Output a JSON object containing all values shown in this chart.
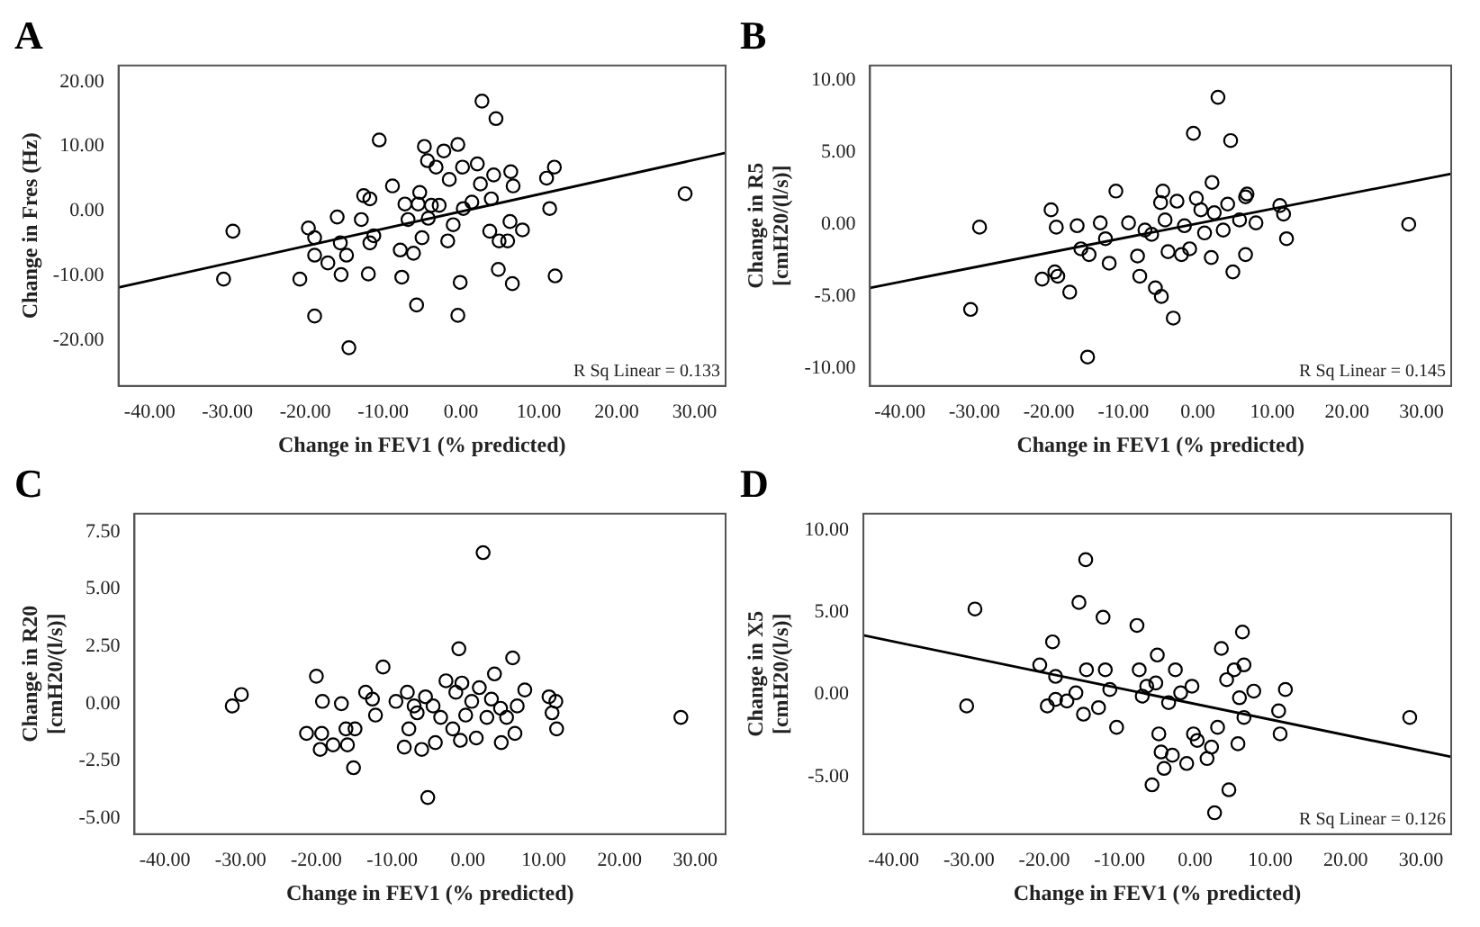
{
  "chart_data": [
    {
      "type": "scatter",
      "title": "A",
      "xlabel": "Change in FEV1 (% predicted)",
      "ylabel": "Change in Fres (Hz)",
      "xlim": [
        -44,
        34
      ],
      "ylim": [
        -27,
        22.5
      ],
      "xticks": [
        {
          "value": -40,
          "label": "-40.00"
        },
        {
          "value": -30,
          "label": "-30.00"
        },
        {
          "value": -20,
          "label": "-20.00"
        },
        {
          "value": -10,
          "label": "-10.00"
        },
        {
          "value": 0,
          "label": "0.00"
        },
        {
          "value": 10,
          "label": "10.00"
        },
        {
          "value": 20,
          "label": "20.00"
        },
        {
          "value": 30,
          "label": "30.00"
        }
      ],
      "yticks": [
        {
          "value": -20,
          "label": "-20.00"
        },
        {
          "value": -10,
          "label": "-10.00"
        },
        {
          "value": 0,
          "label": "0.00"
        },
        {
          "value": 10,
          "label": "10.00"
        },
        {
          "value": 20,
          "label": "20.00"
        }
      ],
      "grid": false,
      "legend": false,
      "annotations": [
        "R Sq Linear = 0.133"
      ],
      "series": [
        {
          "type": "scatter",
          "marker": "circle",
          "color": "#000000",
          "x": [
            -30.5,
            -29.3,
            -20.7,
            -19.6,
            -18.8,
            -18.8,
            -18.8,
            -17.1,
            -15.9,
            -15.5,
            -15.4,
            -14.7,
            -14.4,
            -12.8,
            -12.5,
            -11.9,
            -11.7,
            -11.7,
            -11.2,
            -10.5,
            -8.8,
            -7.6,
            -7.8,
            -7.2,
            -6.8,
            -6.1,
            -5.7,
            -5.5,
            -5.3,
            -5.0,
            -4.7,
            -4.3,
            -4.2,
            -3.8,
            -3.2,
            -2.8,
            -2.2,
            -1.7,
            -1.5,
            -1.0,
            -0.4,
            -0.4,
            -0.1,
            0.2,
            0.3,
            1.4,
            2.1,
            2.5,
            2.7,
            3.7,
            3.9,
            4.2,
            4.5,
            4.8,
            4.9,
            6.0,
            6.3,
            6.4,
            6.6,
            6.7,
            7.9,
            11.0,
            11.4,
            12.0,
            12.1,
            28.8
          ],
          "values": [
            -10.5,
            -3.1,
            -10.5,
            -2.6,
            -4.1,
            -6.8,
            -16.2,
            -8.0,
            -0.9,
            -4.9,
            -9.8,
            -6.8,
            -21.1,
            -1.3,
            2.4,
            -9.7,
            1.9,
            -4.9,
            -3.8,
            11.0,
            3.9,
            -10.2,
            -6.0,
            1.1,
            -1.3,
            -6.5,
            -14.5,
            1.1,
            2.9,
            -4.1,
            10.0,
            7.8,
            -1.1,
            0.9,
            6.8,
            0.9,
            9.3,
            -4.6,
            4.9,
            -2.1,
            10.3,
            -16.1,
            -11.0,
            6.8,
            0.4,
            1.4,
            7.3,
            4.2,
            17.0,
            -3.1,
            1.9,
            5.6,
            14.3,
            -9.0,
            -4.6,
            -4.6,
            -1.6,
            6.1,
            -11.2,
            3.9,
            -2.9,
            5.1,
            0.4,
            6.8,
            -10.0,
            2.7
          ]
        },
        {
          "type": "line",
          "marker": "none",
          "color": "#000000",
          "x": [
            -44,
            34
          ],
          "values": [
            -11.8,
            9.0
          ]
        }
      ]
    },
    {
      "type": "scatter",
      "title": "B",
      "xlabel": "Change in FEV1 (% predicted)",
      "ylabel": "Change in R5 [cmH20/(l/s)]",
      "xlim": [
        -44,
        34
      ],
      "ylim": [
        -11.2,
        11
      ],
      "xticks": [
        {
          "value": -40,
          "label": "-40.00"
        },
        {
          "value": -30,
          "label": "-30.00"
        },
        {
          "value": -20,
          "label": "-20.00"
        },
        {
          "value": -10,
          "label": "-10.00"
        },
        {
          "value": 0,
          "label": "0.00"
        },
        {
          "value": 10,
          "label": "10.00"
        },
        {
          "value": 20,
          "label": "20.00"
        },
        {
          "value": 30,
          "label": "30.00"
        }
      ],
      "yticks": [
        {
          "value": -10,
          "label": "-10.00"
        },
        {
          "value": -5,
          "label": "-5.00"
        },
        {
          "value": 0,
          "label": "0.00"
        },
        {
          "value": 5,
          "label": "5.00"
        },
        {
          "value": 10,
          "label": "10.00"
        }
      ],
      "grid": false,
      "legend": false,
      "annotations": [
        "R Sq Linear = 0.145"
      ],
      "series": [
        {
          "type": "scatter",
          "marker": "circle",
          "color": "#000000",
          "x": [
            -30.5,
            -29.3,
            -20.9,
            -19.7,
            -19.0,
            -19.2,
            -18.8,
            -17.2,
            -16.2,
            -15.7,
            -14.8,
            -14.6,
            -13.1,
            -12.4,
            -11.9,
            -11.0,
            -9.3,
            -8.1,
            -7.8,
            -7.1,
            -6.2,
            -5.7,
            -5.0,
            -4.9,
            -4.7,
            -4.4,
            -4.0,
            -3.3,
            -2.8,
            -2.2,
            -1.8,
            -1.1,
            -0.6,
            -0.2,
            0.4,
            0.9,
            1.8,
            1.9,
            2.2,
            2.7,
            3.4,
            4.0,
            4.4,
            4.7,
            5.6,
            6.4,
            6.4,
            6.6,
            7.8,
            11.0,
            11.5,
            11.9,
            28.3
          ],
          "values": [
            -5.9,
            -0.2,
            -3.8,
            1.0,
            -0.2,
            -3.3,
            -3.6,
            -4.7,
            -0.1,
            -1.7,
            -9.2,
            -2.1,
            0.1,
            -1.0,
            -2.7,
            2.3,
            0.1,
            -2.2,
            -3.6,
            -0.4,
            -0.7,
            -4.4,
            1.5,
            -5.0,
            2.3,
            0.3,
            -1.9,
            -6.5,
            1.6,
            -2.1,
            -0.1,
            -1.7,
            6.3,
            1.8,
            1.0,
            -0.6,
            -2.3,
            2.9,
            0.8,
            8.8,
            -0.4,
            1.4,
            5.8,
            -3.3,
            0.3,
            1.9,
            -2.1,
            2.1,
            0.1,
            1.3,
            0.7,
            -1.0,
            0.0
          ]
        },
        {
          "type": "line",
          "marker": "none",
          "color": "#000000",
          "x": [
            -44,
            34
          ],
          "values": [
            -4.4,
            3.5
          ]
        }
      ]
    },
    {
      "type": "scatter",
      "title": "C",
      "xlabel": "Change in FEV1 (% predicted)",
      "ylabel": "Change in R20 [cmH20/(l/s)]",
      "xlim": [
        -44,
        34
      ],
      "ylim": [
        -5.7,
        8.3
      ],
      "xticks": [
        {
          "value": -40,
          "label": "-40.00"
        },
        {
          "value": -30,
          "label": "-30.00"
        },
        {
          "value": -20,
          "label": "-20.00"
        },
        {
          "value": -10,
          "label": "-10.00"
        },
        {
          "value": 0,
          "label": "0.00"
        },
        {
          "value": 10,
          "label": "10.00"
        },
        {
          "value": 20,
          "label": "20.00"
        },
        {
          "value": 30,
          "label": "30.00"
        }
      ],
      "yticks": [
        {
          "value": -5,
          "label": "-5.00"
        },
        {
          "value": -2.5,
          "label": "-2.50"
        },
        {
          "value": 0,
          "label": "0.00"
        },
        {
          "value": 2.5,
          "label": "2.50"
        },
        {
          "value": 5,
          "label": "5.00"
        },
        {
          "value": 7.5,
          "label": "7.50"
        }
      ],
      "grid": false,
      "legend": false,
      "series": [
        {
          "type": "scatter",
          "marker": "circle",
          "color": "#000000",
          "x": [
            -31.1,
            -29.9,
            -21.3,
            -20.0,
            -19.5,
            -19.2,
            -19.3,
            -17.8,
            -16.7,
            -16.1,
            -15.9,
            -15.1,
            -14.9,
            -13.5,
            -12.6,
            -12.2,
            -11.2,
            -9.5,
            -8.4,
            -8.0,
            -7.8,
            -7.1,
            -6.7,
            -6.1,
            -5.6,
            -5.3,
            -4.6,
            -4.3,
            -3.6,
            -2.9,
            -2.0,
            -1.6,
            -1.2,
            -1.0,
            -0.8,
            -0.3,
            0.5,
            1.1,
            1.5,
            2.0,
            2.5,
            3.1,
            3.5,
            4.3,
            4.4,
            5.1,
            5.9,
            6.2,
            6.5,
            7.5,
            10.7,
            11.1,
            11.6,
            11.7,
            28.1
          ],
          "values": [
            -0.1,
            0.4,
            -1.3,
            1.2,
            -2.0,
            0.1,
            -1.3,
            -1.8,
            0.0,
            -1.1,
            -1.8,
            -2.8,
            -1.1,
            0.5,
            0.2,
            -0.5,
            1.6,
            0.1,
            -1.9,
            0.5,
            -1.1,
            -0.1,
            -0.4,
            -2.0,
            0.3,
            -4.1,
            -0.1,
            -1.7,
            -0.6,
            1.0,
            -1.1,
            0.5,
            2.4,
            -1.6,
            0.9,
            -0.5,
            0.1,
            -1.5,
            0.7,
            6.6,
            -0.6,
            0.2,
            1.3,
            -0.2,
            -1.7,
            -0.6,
            2.0,
            -1.3,
            -0.1,
            0.6,
            0.3,
            -0.4,
            0.1,
            -1.1,
            -0.6
          ]
        }
      ]
    },
    {
      "type": "scatter",
      "title": "D",
      "xlabel": "Change in FEV1 (% predicted)",
      "ylabel": "Change in X5 [cmH20/(l/s)]",
      "xlim": [
        -44,
        34
      ],
      "ylim": [
        -8.5,
        11
      ],
      "xticks": [
        {
          "value": -40,
          "label": "-40.00"
        },
        {
          "value": -30,
          "label": "-30.00"
        },
        {
          "value": -20,
          "label": "-20.00"
        },
        {
          "value": -10,
          "label": "-10.00"
        },
        {
          "value": 0,
          "label": "0.00"
        },
        {
          "value": 10,
          "label": "10.00"
        },
        {
          "value": 20,
          "label": "20.00"
        },
        {
          "value": 30,
          "label": "30.00"
        }
      ],
      "yticks": [
        {
          "value": -5,
          "label": "-5.00"
        },
        {
          "value": 0,
          "label": "0.00"
        },
        {
          "value": 5,
          "label": "5.00"
        },
        {
          "value": 10,
          "label": "10.00"
        }
      ],
      "grid": false,
      "legend": false,
      "annotations": [
        "R Sq Linear = 0.126"
      ],
      "series": [
        {
          "type": "scatter",
          "marker": "circle",
          "color": "#000000",
          "x": [
            -30.3,
            -29.2,
            -20.6,
            -19.6,
            -18.9,
            -18.5,
            -18.5,
            -17.0,
            -15.8,
            -15.4,
            -14.8,
            -14.5,
            -14.4,
            -12.8,
            -12.2,
            -11.9,
            -11.3,
            -10.4,
            -7.7,
            -7.4,
            -7.0,
            -6.4,
            -5.7,
            -5.2,
            -5.0,
            -4.8,
            -4.5,
            -4.1,
            -3.5,
            -3.0,
            -2.6,
            -1.9,
            -1.1,
            -0.4,
            -0.2,
            0.3,
            1.6,
            2.2,
            2.6,
            3.0,
            3.5,
            4.2,
            4.5,
            5.2,
            5.7,
            5.9,
            6.3,
            6.5,
            6.5,
            7.8,
            11.1,
            11.3,
            12.0,
            28.5
          ],
          "values": [
            -0.7,
            5.2,
            1.8,
            -0.7,
            3.2,
            1.1,
            -0.3,
            -0.4,
            0.1,
            5.6,
            -1.2,
            8.2,
            1.5,
            -0.8,
            4.7,
            1.5,
            0.3,
            -2.0,
            4.2,
            1.5,
            -0.1,
            0.5,
            -5.5,
            0.7,
            2.4,
            -2.4,
            -3.5,
            -4.5,
            -0.5,
            -3.7,
            1.5,
            0.1,
            -4.2,
            0.5,
            -2.4,
            -2.8,
            -3.9,
            -3.2,
            -7.2,
            -2.0,
            2.8,
            0.9,
            -5.8,
            1.5,
            -3.0,
            -0.2,
            3.8,
            1.8,
            -1.4,
            0.2,
            -1.0,
            -2.4,
            0.3,
            -1.4
          ]
        },
        {
          "type": "line",
          "marker": "none",
          "color": "#000000",
          "x": [
            -44,
            34
          ],
          "values": [
            3.6,
            -3.8
          ]
        }
      ]
    }
  ]
}
